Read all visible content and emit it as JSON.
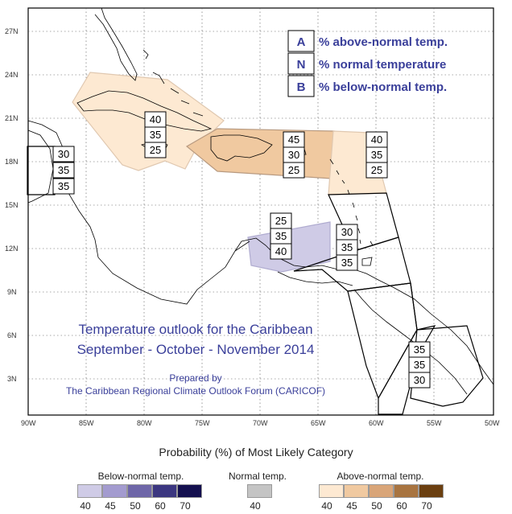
{
  "map": {
    "lat_labels": [
      "27N",
      "24N",
      "21N",
      "18N",
      "15N",
      "12N",
      "9N",
      "6N",
      "3N"
    ],
    "lon_labels": [
      "90W",
      "85W",
      "80W",
      "75W",
      "70W",
      "65W",
      "60W",
      "55W",
      "50W"
    ],
    "key": [
      {
        "letter": "A",
        "text": "% above-normal temp."
      },
      {
        "letter": "N",
        "text": "% normal temperature"
      },
      {
        "letter": "B",
        "text": "% below-normal temp."
      }
    ],
    "title_line1": "Temperature outlook for the Caribbean",
    "title_line2": "September - October - November 2014",
    "prepared_line1": "Prepared by",
    "prepared_line2": "The Caribbean Regional Climate Outlook Forum (CARICOF)",
    "region_probs": [
      {
        "region": "belize",
        "values": [
          "30",
          "35",
          "35"
        ]
      },
      {
        "region": "cuba-jamaica",
        "values": [
          "40",
          "35",
          "25"
        ]
      },
      {
        "region": "hispaniola-puerto-rico",
        "values": [
          "45",
          "30",
          "25"
        ]
      },
      {
        "region": "lesser-antilles-north",
        "values": [
          "40",
          "35",
          "25"
        ]
      },
      {
        "region": "abc-islands",
        "values": [
          "25",
          "35",
          "40"
        ]
      },
      {
        "region": "windward-islands",
        "values": [
          "30",
          "35",
          "35"
        ]
      },
      {
        "region": "guianas",
        "values": [
          "35",
          "35",
          "30"
        ]
      }
    ],
    "colors": {
      "above40": "#fde9d2",
      "above45": "#f0c9a0",
      "above50": "#d9a578",
      "above60": "#a87440",
      "above70": "#6b3f10",
      "below40": "#cfcbe6",
      "below45": "#a39bcf",
      "below50": "#6e66a8",
      "below60": "#3b3680",
      "below70": "#14104f",
      "normal40": "#c4c4c4"
    }
  },
  "colorbar": {
    "title": "Probability (%) of Most Likely Category",
    "below_label": "Below-normal temp.",
    "normal_label": "Normal temp.",
    "above_label": "Above-normal temp.",
    "below_ticks": [
      "40",
      "45",
      "50",
      "60",
      "70"
    ],
    "normal_ticks": [
      "40"
    ],
    "above_ticks": [
      "40",
      "45",
      "50",
      "60",
      "70"
    ]
  }
}
